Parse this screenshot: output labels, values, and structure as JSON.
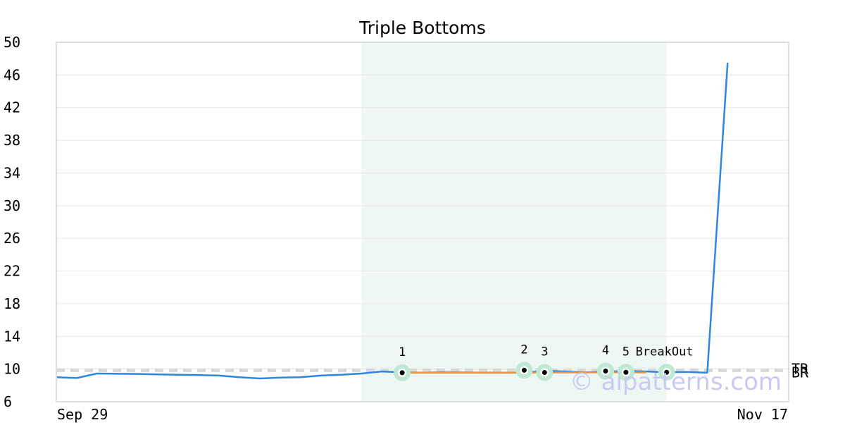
{
  "chart_data": {
    "type": "line",
    "title": "Triple Bottoms",
    "xlabel": "",
    "ylabel": "",
    "ylim": [
      6,
      50
    ],
    "yticks": [
      6,
      10,
      14,
      18,
      22,
      26,
      30,
      34,
      38,
      42,
      46,
      50
    ],
    "x_tick_labels": [
      "Sep 29",
      "Nov 17"
    ],
    "x_range_index": [
      0,
      36
    ],
    "grid": true,
    "series": [
      {
        "color": "#2e86de",
        "x_index": [
          0,
          1,
          2,
          3,
          4,
          5,
          6,
          7,
          8,
          9,
          10,
          11,
          12,
          13,
          14,
          15,
          16,
          17,
          18,
          19,
          20,
          21,
          22,
          23,
          24,
          25,
          26,
          27,
          28,
          29,
          30,
          31,
          32,
          33
        ],
        "values": [
          9.0,
          8.9,
          9.45,
          9.42,
          9.4,
          9.35,
          9.3,
          9.25,
          9.2,
          9.0,
          8.85,
          8.95,
          9.0,
          9.2,
          9.3,
          9.45,
          9.7,
          9.6,
          9.55,
          9.6,
          9.58,
          9.55,
          9.55,
          9.56,
          9.8,
          9.7,
          9.6,
          9.68,
          9.75,
          9.7,
          9.6,
          9.65,
          9.55,
          47.5
        ]
      }
    ],
    "pattern_line": {
      "color": "#e8924a",
      "x_index": [
        17,
        23,
        24,
        28,
        29
      ],
      "values": [
        9.55,
        9.55,
        9.58,
        9.6,
        9.58
      ]
    },
    "highlight_region": {
      "x_start_index": 15,
      "x_end_index": 30,
      "color": "#eef7f3"
    },
    "points": [
      {
        "label": "1",
        "x_index": 17,
        "value": 9.55
      },
      {
        "label": "2",
        "x_index": 23,
        "value": 9.85
      },
      {
        "label": "3",
        "x_index": 24,
        "value": 9.58
      },
      {
        "label": "4",
        "x_index": 27,
        "value": 9.75
      },
      {
        "label": "5",
        "x_index": 28,
        "value": 9.6
      },
      {
        "label": "BreakOut",
        "x_index": 30,
        "value": 9.6
      }
    ],
    "reference_lines": [
      {
        "label": "BR",
        "value": 9.85,
        "style": "dashed",
        "color": "#d9d9d9"
      },
      {
        "label": "TR",
        "value": 9.85,
        "style": "dashed",
        "color": "#d9d9d9"
      }
    ],
    "colors": {
      "series": "#2e86de",
      "pattern": "#e8924a",
      "highlight": "#eef7f3",
      "point_ring": "#bfe8d2",
      "axis": "#dddddd",
      "grid": "#e6e6e6"
    }
  },
  "watermark": "© aipatterns.com"
}
